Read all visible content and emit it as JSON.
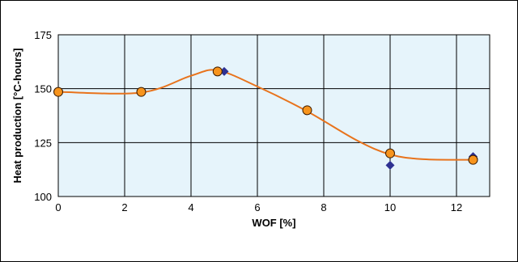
{
  "chart_data": {
    "type": "scatter",
    "xlabel": "WOF [%]",
    "ylabel": "Heat production [°C-hours]",
    "xlim": [
      0,
      13
    ],
    "ylim": [
      100,
      175
    ],
    "x_ticks": [
      0,
      2,
      4,
      6,
      8,
      10,
      12
    ],
    "y_ticks": [
      100,
      125,
      150,
      175
    ],
    "grid": true,
    "series": [
      {
        "marker": "circle",
        "color": "#f7941d",
        "stroke": "#3a1a00",
        "points": [
          {
            "x": 0,
            "y": 148.5
          },
          {
            "x": 2.5,
            "y": 148.5
          },
          {
            "x": 4.8,
            "y": 158
          },
          {
            "x": 7.5,
            "y": 140
          },
          {
            "x": 10,
            "y": 120
          },
          {
            "x": 12.5,
            "y": 117
          }
        ]
      },
      {
        "marker": "diamond",
        "color": "#2e3192",
        "points": [
          {
            "x": 5,
            "y": 158
          },
          {
            "x": 10,
            "y": 114.5
          },
          {
            "x": 12.5,
            "y": 118.5
          }
        ]
      }
    ],
    "trend_line": {
      "color": "#e8731c",
      "points": [
        [
          0,
          148.5
        ],
        [
          2.5,
          148.2
        ],
        [
          4,
          156
        ],
        [
          4.8,
          158.5
        ],
        [
          6,
          151
        ],
        [
          7.5,
          139.5
        ],
        [
          9,
          126
        ],
        [
          10,
          119.5
        ],
        [
          11,
          117.3
        ],
        [
          12.5,
          117
        ]
      ]
    },
    "plot_background": "#e6f4fb"
  }
}
